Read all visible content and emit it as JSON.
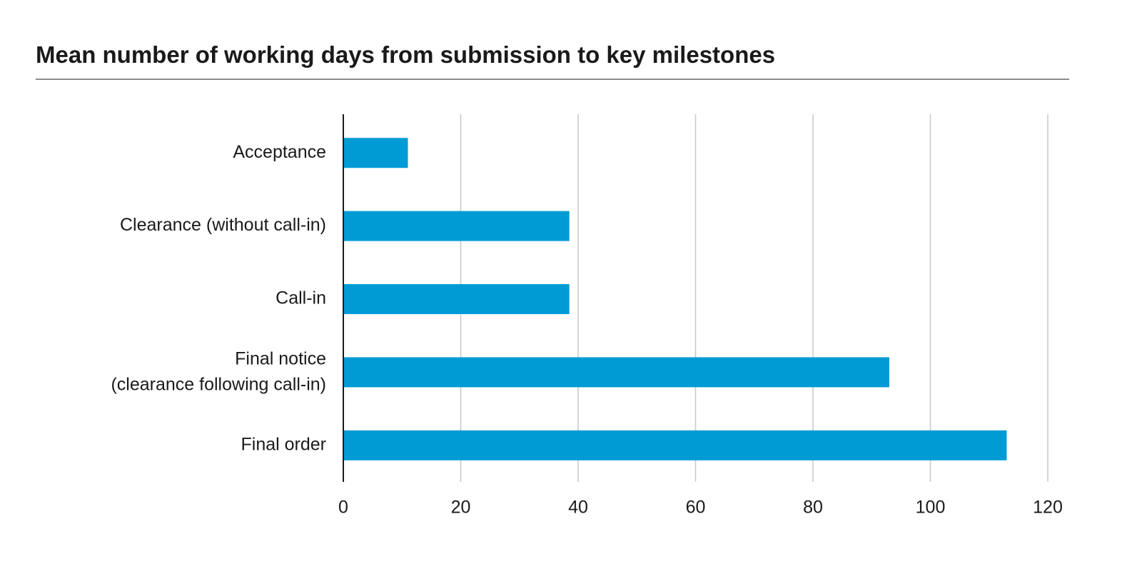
{
  "chart_data": {
    "type": "hbar",
    "title": "Mean number of working days from submission to key milestones",
    "categories": [
      "Acceptance",
      "Clearance (without call-in)",
      "Call-in",
      "Final notice\n(clearance following call-in)",
      "Final order"
    ],
    "values": [
      11,
      38.5,
      38.5,
      93,
      113
    ],
    "color": "#009bd5",
    "xlim": [
      0,
      120
    ],
    "xticks": [
      0,
      20,
      40,
      60,
      80,
      100,
      120
    ],
    "grid": true
  }
}
